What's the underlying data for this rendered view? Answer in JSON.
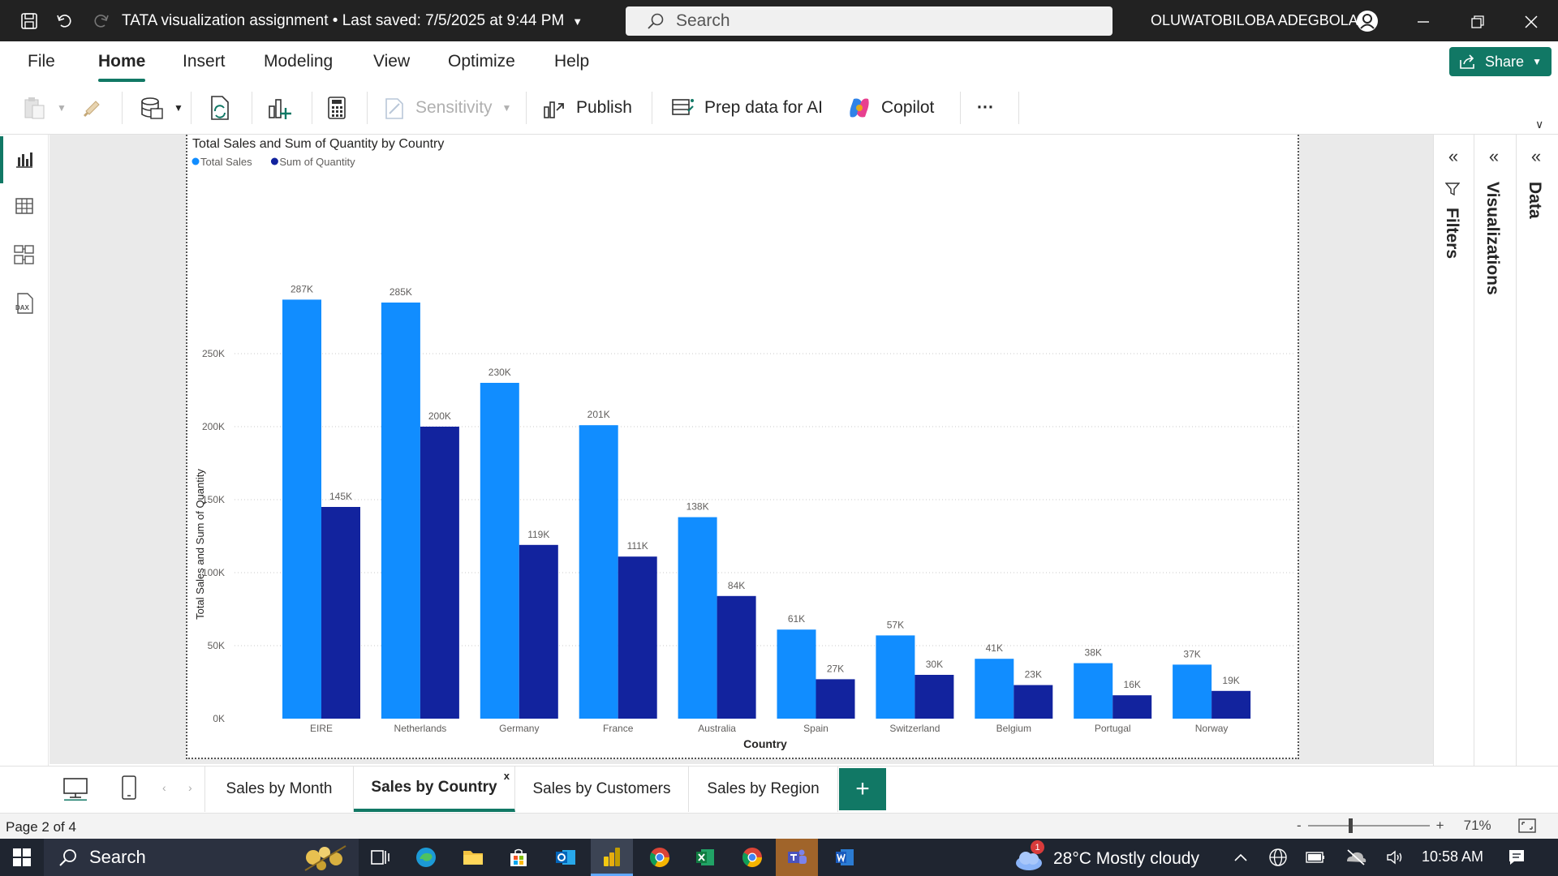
{
  "titlebar": {
    "document_title": "TATA visualization assignment • Last saved: 7/5/2025 at 9:44 PM",
    "search_placeholder": "Search",
    "user_name": "OLUWATOBILOBA ADEGBOLA"
  },
  "menu": {
    "items": [
      "File",
      "Home",
      "Insert",
      "Modeling",
      "View",
      "Optimize",
      "Help"
    ],
    "active": "Home",
    "share_label": "Share"
  },
  "ribbon": {
    "sensitivity_label": "Sensitivity",
    "publish_label": "Publish",
    "prep_data_label": "Prep data for AI",
    "copilot_label": "Copilot",
    "more_label": "···"
  },
  "panes": {
    "filters_label": "Filters",
    "visualizations_label": "Visualizations",
    "data_label": "Data"
  },
  "page_tabs": {
    "tabs": [
      "Sales by Month",
      "Sales by Country",
      "Sales by Customers",
      "Sales by Region"
    ],
    "active": "Sales by Country",
    "close_label": "x",
    "add_label": "+"
  },
  "status": {
    "page_info": "Page 2 of 4",
    "zoom_level": "71%",
    "zoom_minus": "-",
    "zoom_plus": "+"
  },
  "taskbar": {
    "search_label": "Search",
    "weather_badge": "1",
    "weather_text": "28°C  Mostly cloudy",
    "time": "10:58 AM"
  },
  "colors": {
    "accent": "#117865",
    "total_sales": "#118DFF",
    "sum_quantity": "#12239E"
  },
  "chart_data": {
    "type": "bar",
    "title": "Total Sales and Sum of Quantity by Country",
    "xlabel": "Country",
    "ylabel": "Total Sales and Sum of Quantity",
    "categories": [
      "EIRE",
      "Netherlands",
      "Germany",
      "France",
      "Australia",
      "Spain",
      "Switzerland",
      "Belgium",
      "Portugal",
      "Norway"
    ],
    "series": [
      {
        "name": "Total Sales",
        "values": [
          287000,
          285000,
          230000,
          201000,
          138000,
          61000,
          57000,
          41000,
          38000,
          37000
        ],
        "labels": [
          "287K",
          "285K",
          "230K",
          "201K",
          "138K",
          "61K",
          "57K",
          "41K",
          "38K",
          "37K"
        ]
      },
      {
        "name": "Sum of Quantity",
        "values": [
          145000,
          200000,
          119000,
          111000,
          84000,
          27000,
          30000,
          23000,
          16000,
          19000
        ],
        "labels": [
          "145K",
          "200K",
          "119K",
          "111K",
          "84K",
          "27K",
          "30K",
          "23K",
          "16K",
          "19K"
        ]
      }
    ],
    "yticks": [
      0,
      50000,
      100000,
      150000,
      200000,
      250000
    ],
    "ytick_labels": [
      "0K",
      "50K",
      "100K",
      "150K",
      "200K",
      "250K"
    ],
    "ylim": [
      0,
      300000
    ],
    "grid": true,
    "legend_position": "top-left"
  }
}
